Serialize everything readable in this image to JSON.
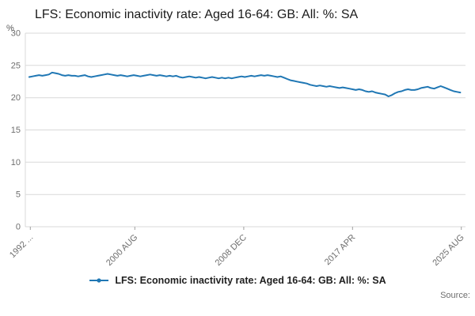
{
  "title": "LFS: Economic inactivity rate: Aged 16-64: GB: All: %: SA",
  "y_axis_unit": "%",
  "source_label": "Source:",
  "legend": {
    "label": "LFS: Economic inactivity rate: Aged 16-64: GB: All: %: SA"
  },
  "colors": {
    "line": "#1f77b4",
    "grid": "#d9d9d9",
    "tick": "#9e9e9e",
    "text": "#1a1a1a",
    "muted": "#6e6e6e"
  },
  "chart_data": {
    "type": "line",
    "title": "LFS: Economic inactivity rate: Aged 16-64: GB: All: %: SA",
    "xlabel": "",
    "ylabel": "%",
    "ylim": [
      0,
      30
    ],
    "xlim": [
      1992.2,
      2025.9
    ],
    "grid": "horizontal",
    "legend_position": "bottom",
    "y_ticks": [
      0,
      5,
      10,
      15,
      20,
      25,
      30
    ],
    "x_ticks": [
      {
        "x": 1992.58,
        "label": "1992 ..."
      },
      {
        "x": 2000.58,
        "label": "2000 AUG"
      },
      {
        "x": 2008.92,
        "label": "2008 DEC"
      },
      {
        "x": 2017.25,
        "label": "2017 APR"
      },
      {
        "x": 2025.58,
        "label": "2025 AUG"
      }
    ],
    "series": [
      {
        "name": "LFS: Economic inactivity rate: Aged 16-64: GB: All: %: SA",
        "x_start": 1992.5,
        "x_step": 0.25,
        "values": [
          23.2,
          23.3,
          23.4,
          23.5,
          23.4,
          23.5,
          23.6,
          23.9,
          23.8,
          23.7,
          23.5,
          23.4,
          23.5,
          23.4,
          23.4,
          23.3,
          23.4,
          23.5,
          23.3,
          23.2,
          23.3,
          23.4,
          23.5,
          23.6,
          23.7,
          23.6,
          23.5,
          23.4,
          23.5,
          23.4,
          23.3,
          23.4,
          23.5,
          23.4,
          23.3,
          23.4,
          23.5,
          23.6,
          23.5,
          23.4,
          23.5,
          23.4,
          23.3,
          23.4,
          23.3,
          23.4,
          23.2,
          23.1,
          23.2,
          23.3,
          23.2,
          23.1,
          23.2,
          23.1,
          23.0,
          23.1,
          23.2,
          23.1,
          23.0,
          23.1,
          23.0,
          23.1,
          23.0,
          23.1,
          23.2,
          23.3,
          23.2,
          23.3,
          23.4,
          23.3,
          23.4,
          23.5,
          23.4,
          23.5,
          23.4,
          23.3,
          23.2,
          23.3,
          23.1,
          22.9,
          22.7,
          22.6,
          22.5,
          22.4,
          22.3,
          22.2,
          22.0,
          21.9,
          21.8,
          21.9,
          21.8,
          21.7,
          21.8,
          21.7,
          21.6,
          21.5,
          21.6,
          21.5,
          21.4,
          21.3,
          21.2,
          21.3,
          21.2,
          21.0,
          20.9,
          21.0,
          20.8,
          20.7,
          20.6,
          20.5,
          20.2,
          20.4,
          20.7,
          20.9,
          21.0,
          21.2,
          21.3,
          21.2,
          21.2,
          21.3,
          21.5,
          21.6,
          21.7,
          21.5,
          21.4,
          21.6,
          21.8,
          21.6,
          21.4,
          21.2,
          21.0,
          20.9,
          20.8
        ]
      }
    ]
  }
}
